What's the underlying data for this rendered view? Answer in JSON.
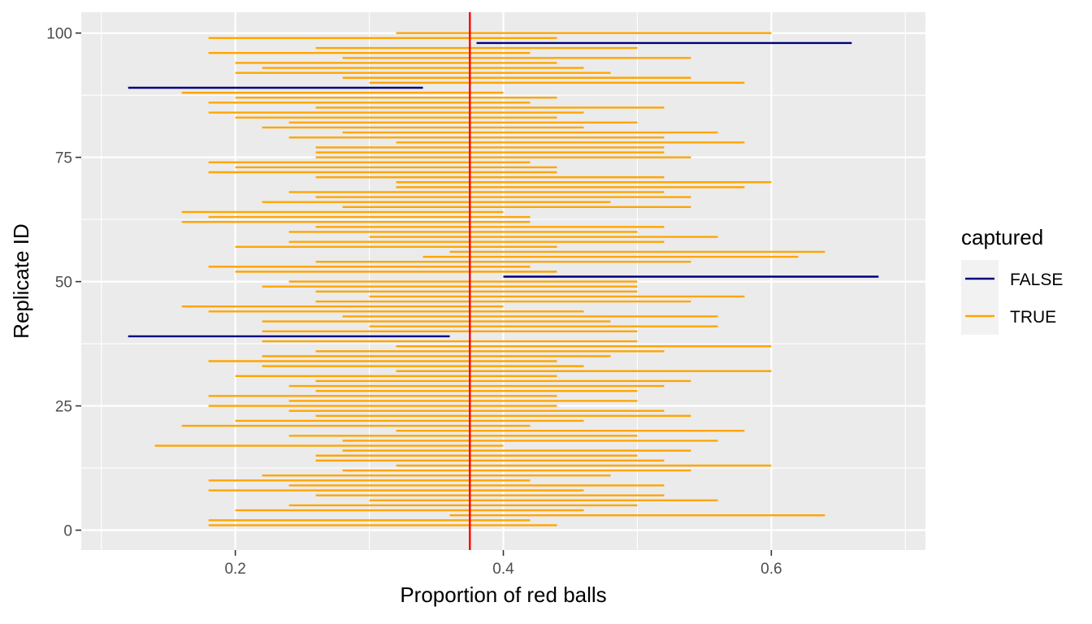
{
  "chart_data": {
    "type": "interval",
    "xlabel": "Proportion of red balls",
    "ylabel": "Replicate ID",
    "xlim": [
      0.085,
      0.715
    ],
    "ylim": [
      -4,
      104.2
    ],
    "x_ticks": [
      0.2,
      0.4,
      0.6
    ],
    "x_tick_labels": [
      "0.2",
      "0.4",
      "0.6"
    ],
    "y_ticks": [
      0,
      25,
      50,
      75,
      100
    ],
    "y_tick_labels": [
      "0",
      "25",
      "50",
      "75",
      "100"
    ],
    "grid": true,
    "reference_line": {
      "x": 0.375,
      "color": "#ff0000"
    },
    "legend": {
      "title": "captured",
      "placement": "right",
      "entries": [
        {
          "label": "FALSE",
          "color": "#000080"
        },
        {
          "label": "TRUE",
          "color": "#ffa500"
        }
      ]
    },
    "intervals": [
      {
        "id": 1,
        "lo": 0.18,
        "hi": 0.44,
        "captured": "TRUE"
      },
      {
        "id": 2,
        "lo": 0.18,
        "hi": 0.42,
        "captured": "TRUE"
      },
      {
        "id": 3,
        "lo": 0.36,
        "hi": 0.64,
        "captured": "TRUE"
      },
      {
        "id": 4,
        "lo": 0.2,
        "hi": 0.46,
        "captured": "TRUE"
      },
      {
        "id": 5,
        "lo": 0.24,
        "hi": 0.5,
        "captured": "TRUE"
      },
      {
        "id": 6,
        "lo": 0.3,
        "hi": 0.56,
        "captured": "TRUE"
      },
      {
        "id": 7,
        "lo": 0.26,
        "hi": 0.52,
        "captured": "TRUE"
      },
      {
        "id": 8,
        "lo": 0.18,
        "hi": 0.46,
        "captured": "TRUE"
      },
      {
        "id": 9,
        "lo": 0.24,
        "hi": 0.52,
        "captured": "TRUE"
      },
      {
        "id": 10,
        "lo": 0.18,
        "hi": 0.42,
        "captured": "TRUE"
      },
      {
        "id": 11,
        "lo": 0.22,
        "hi": 0.48,
        "captured": "TRUE"
      },
      {
        "id": 12,
        "lo": 0.28,
        "hi": 0.54,
        "captured": "TRUE"
      },
      {
        "id": 13,
        "lo": 0.32,
        "hi": 0.6,
        "captured": "TRUE"
      },
      {
        "id": 14,
        "lo": 0.26,
        "hi": 0.52,
        "captured": "TRUE"
      },
      {
        "id": 15,
        "lo": 0.26,
        "hi": 0.5,
        "captured": "TRUE"
      },
      {
        "id": 16,
        "lo": 0.28,
        "hi": 0.54,
        "captured": "TRUE"
      },
      {
        "id": 17,
        "lo": 0.14,
        "hi": 0.4,
        "captured": "TRUE"
      },
      {
        "id": 18,
        "lo": 0.28,
        "hi": 0.56,
        "captured": "TRUE"
      },
      {
        "id": 19,
        "lo": 0.24,
        "hi": 0.5,
        "captured": "TRUE"
      },
      {
        "id": 20,
        "lo": 0.32,
        "hi": 0.58,
        "captured": "TRUE"
      },
      {
        "id": 21,
        "lo": 0.16,
        "hi": 0.42,
        "captured": "TRUE"
      },
      {
        "id": 22,
        "lo": 0.2,
        "hi": 0.46,
        "captured": "TRUE"
      },
      {
        "id": 23,
        "lo": 0.26,
        "hi": 0.54,
        "captured": "TRUE"
      },
      {
        "id": 24,
        "lo": 0.24,
        "hi": 0.52,
        "captured": "TRUE"
      },
      {
        "id": 25,
        "lo": 0.18,
        "hi": 0.44,
        "captured": "TRUE"
      },
      {
        "id": 26,
        "lo": 0.24,
        "hi": 0.5,
        "captured": "TRUE"
      },
      {
        "id": 27,
        "lo": 0.18,
        "hi": 0.44,
        "captured": "TRUE"
      },
      {
        "id": 28,
        "lo": 0.26,
        "hi": 0.5,
        "captured": "TRUE"
      },
      {
        "id": 29,
        "lo": 0.24,
        "hi": 0.52,
        "captured": "TRUE"
      },
      {
        "id": 30,
        "lo": 0.26,
        "hi": 0.54,
        "captured": "TRUE"
      },
      {
        "id": 31,
        "lo": 0.2,
        "hi": 0.44,
        "captured": "TRUE"
      },
      {
        "id": 32,
        "lo": 0.32,
        "hi": 0.6,
        "captured": "TRUE"
      },
      {
        "id": 33,
        "lo": 0.22,
        "hi": 0.46,
        "captured": "TRUE"
      },
      {
        "id": 34,
        "lo": 0.18,
        "hi": 0.44,
        "captured": "TRUE"
      },
      {
        "id": 35,
        "lo": 0.22,
        "hi": 0.48,
        "captured": "TRUE"
      },
      {
        "id": 36,
        "lo": 0.26,
        "hi": 0.52,
        "captured": "TRUE"
      },
      {
        "id": 37,
        "lo": 0.32,
        "hi": 0.6,
        "captured": "TRUE"
      },
      {
        "id": 38,
        "lo": 0.22,
        "hi": 0.5,
        "captured": "TRUE"
      },
      {
        "id": 39,
        "lo": 0.12,
        "hi": 0.36,
        "captured": "FALSE"
      },
      {
        "id": 40,
        "lo": 0.22,
        "hi": 0.5,
        "captured": "TRUE"
      },
      {
        "id": 41,
        "lo": 0.3,
        "hi": 0.56,
        "captured": "TRUE"
      },
      {
        "id": 42,
        "lo": 0.22,
        "hi": 0.48,
        "captured": "TRUE"
      },
      {
        "id": 43,
        "lo": 0.28,
        "hi": 0.56,
        "captured": "TRUE"
      },
      {
        "id": 44,
        "lo": 0.18,
        "hi": 0.46,
        "captured": "TRUE"
      },
      {
        "id": 45,
        "lo": 0.16,
        "hi": 0.4,
        "captured": "TRUE"
      },
      {
        "id": 46,
        "lo": 0.26,
        "hi": 0.54,
        "captured": "TRUE"
      },
      {
        "id": 47,
        "lo": 0.3,
        "hi": 0.58,
        "captured": "TRUE"
      },
      {
        "id": 48,
        "lo": 0.26,
        "hi": 0.5,
        "captured": "TRUE"
      },
      {
        "id": 49,
        "lo": 0.22,
        "hi": 0.5,
        "captured": "TRUE"
      },
      {
        "id": 50,
        "lo": 0.24,
        "hi": 0.5,
        "captured": "TRUE"
      },
      {
        "id": 51,
        "lo": 0.4,
        "hi": 0.68,
        "captured": "FALSE"
      },
      {
        "id": 52,
        "lo": 0.2,
        "hi": 0.44,
        "captured": "TRUE"
      },
      {
        "id": 53,
        "lo": 0.18,
        "hi": 0.42,
        "captured": "TRUE"
      },
      {
        "id": 54,
        "lo": 0.26,
        "hi": 0.54,
        "captured": "TRUE"
      },
      {
        "id": 55,
        "lo": 0.34,
        "hi": 0.62,
        "captured": "TRUE"
      },
      {
        "id": 56,
        "lo": 0.36,
        "hi": 0.64,
        "captured": "TRUE"
      },
      {
        "id": 57,
        "lo": 0.2,
        "hi": 0.44,
        "captured": "TRUE"
      },
      {
        "id": 58,
        "lo": 0.24,
        "hi": 0.52,
        "captured": "TRUE"
      },
      {
        "id": 59,
        "lo": 0.3,
        "hi": 0.56,
        "captured": "TRUE"
      },
      {
        "id": 60,
        "lo": 0.24,
        "hi": 0.5,
        "captured": "TRUE"
      },
      {
        "id": 61,
        "lo": 0.26,
        "hi": 0.52,
        "captured": "TRUE"
      },
      {
        "id": 62,
        "lo": 0.16,
        "hi": 0.42,
        "captured": "TRUE"
      },
      {
        "id": 63,
        "lo": 0.18,
        "hi": 0.42,
        "captured": "TRUE"
      },
      {
        "id": 64,
        "lo": 0.16,
        "hi": 0.4,
        "captured": "TRUE"
      },
      {
        "id": 65,
        "lo": 0.28,
        "hi": 0.54,
        "captured": "TRUE"
      },
      {
        "id": 66,
        "lo": 0.22,
        "hi": 0.48,
        "captured": "TRUE"
      },
      {
        "id": 67,
        "lo": 0.26,
        "hi": 0.54,
        "captured": "TRUE"
      },
      {
        "id": 68,
        "lo": 0.24,
        "hi": 0.52,
        "captured": "TRUE"
      },
      {
        "id": 69,
        "lo": 0.32,
        "hi": 0.58,
        "captured": "TRUE"
      },
      {
        "id": 70,
        "lo": 0.32,
        "hi": 0.6,
        "captured": "TRUE"
      },
      {
        "id": 71,
        "lo": 0.26,
        "hi": 0.52,
        "captured": "TRUE"
      },
      {
        "id": 72,
        "lo": 0.18,
        "hi": 0.44,
        "captured": "TRUE"
      },
      {
        "id": 73,
        "lo": 0.2,
        "hi": 0.44,
        "captured": "TRUE"
      },
      {
        "id": 74,
        "lo": 0.18,
        "hi": 0.42,
        "captured": "TRUE"
      },
      {
        "id": 75,
        "lo": 0.26,
        "hi": 0.54,
        "captured": "TRUE"
      },
      {
        "id": 76,
        "lo": 0.26,
        "hi": 0.52,
        "captured": "TRUE"
      },
      {
        "id": 77,
        "lo": 0.26,
        "hi": 0.52,
        "captured": "TRUE"
      },
      {
        "id": 78,
        "lo": 0.32,
        "hi": 0.58,
        "captured": "TRUE"
      },
      {
        "id": 79,
        "lo": 0.24,
        "hi": 0.52,
        "captured": "TRUE"
      },
      {
        "id": 80,
        "lo": 0.28,
        "hi": 0.56,
        "captured": "TRUE"
      },
      {
        "id": 81,
        "lo": 0.22,
        "hi": 0.46,
        "captured": "TRUE"
      },
      {
        "id": 82,
        "lo": 0.24,
        "hi": 0.5,
        "captured": "TRUE"
      },
      {
        "id": 83,
        "lo": 0.2,
        "hi": 0.44,
        "captured": "TRUE"
      },
      {
        "id": 84,
        "lo": 0.18,
        "hi": 0.46,
        "captured": "TRUE"
      },
      {
        "id": 85,
        "lo": 0.26,
        "hi": 0.52,
        "captured": "TRUE"
      },
      {
        "id": 86,
        "lo": 0.18,
        "hi": 0.42,
        "captured": "TRUE"
      },
      {
        "id": 87,
        "lo": 0.2,
        "hi": 0.44,
        "captured": "TRUE"
      },
      {
        "id": 88,
        "lo": 0.16,
        "hi": 0.4,
        "captured": "TRUE"
      },
      {
        "id": 89,
        "lo": 0.12,
        "hi": 0.34,
        "captured": "FALSE"
      },
      {
        "id": 90,
        "lo": 0.3,
        "hi": 0.58,
        "captured": "TRUE"
      },
      {
        "id": 91,
        "lo": 0.28,
        "hi": 0.54,
        "captured": "TRUE"
      },
      {
        "id": 92,
        "lo": 0.2,
        "hi": 0.48,
        "captured": "TRUE"
      },
      {
        "id": 93,
        "lo": 0.22,
        "hi": 0.46,
        "captured": "TRUE"
      },
      {
        "id": 94,
        "lo": 0.2,
        "hi": 0.44,
        "captured": "TRUE"
      },
      {
        "id": 95,
        "lo": 0.28,
        "hi": 0.54,
        "captured": "TRUE"
      },
      {
        "id": 96,
        "lo": 0.18,
        "hi": 0.42,
        "captured": "TRUE"
      },
      {
        "id": 97,
        "lo": 0.26,
        "hi": 0.5,
        "captured": "TRUE"
      },
      {
        "id": 98,
        "lo": 0.38,
        "hi": 0.66,
        "captured": "FALSE"
      },
      {
        "id": 99,
        "lo": 0.18,
        "hi": 0.44,
        "captured": "TRUE"
      },
      {
        "id": 100,
        "lo": 0.32,
        "hi": 0.6,
        "captured": "TRUE"
      }
    ]
  }
}
